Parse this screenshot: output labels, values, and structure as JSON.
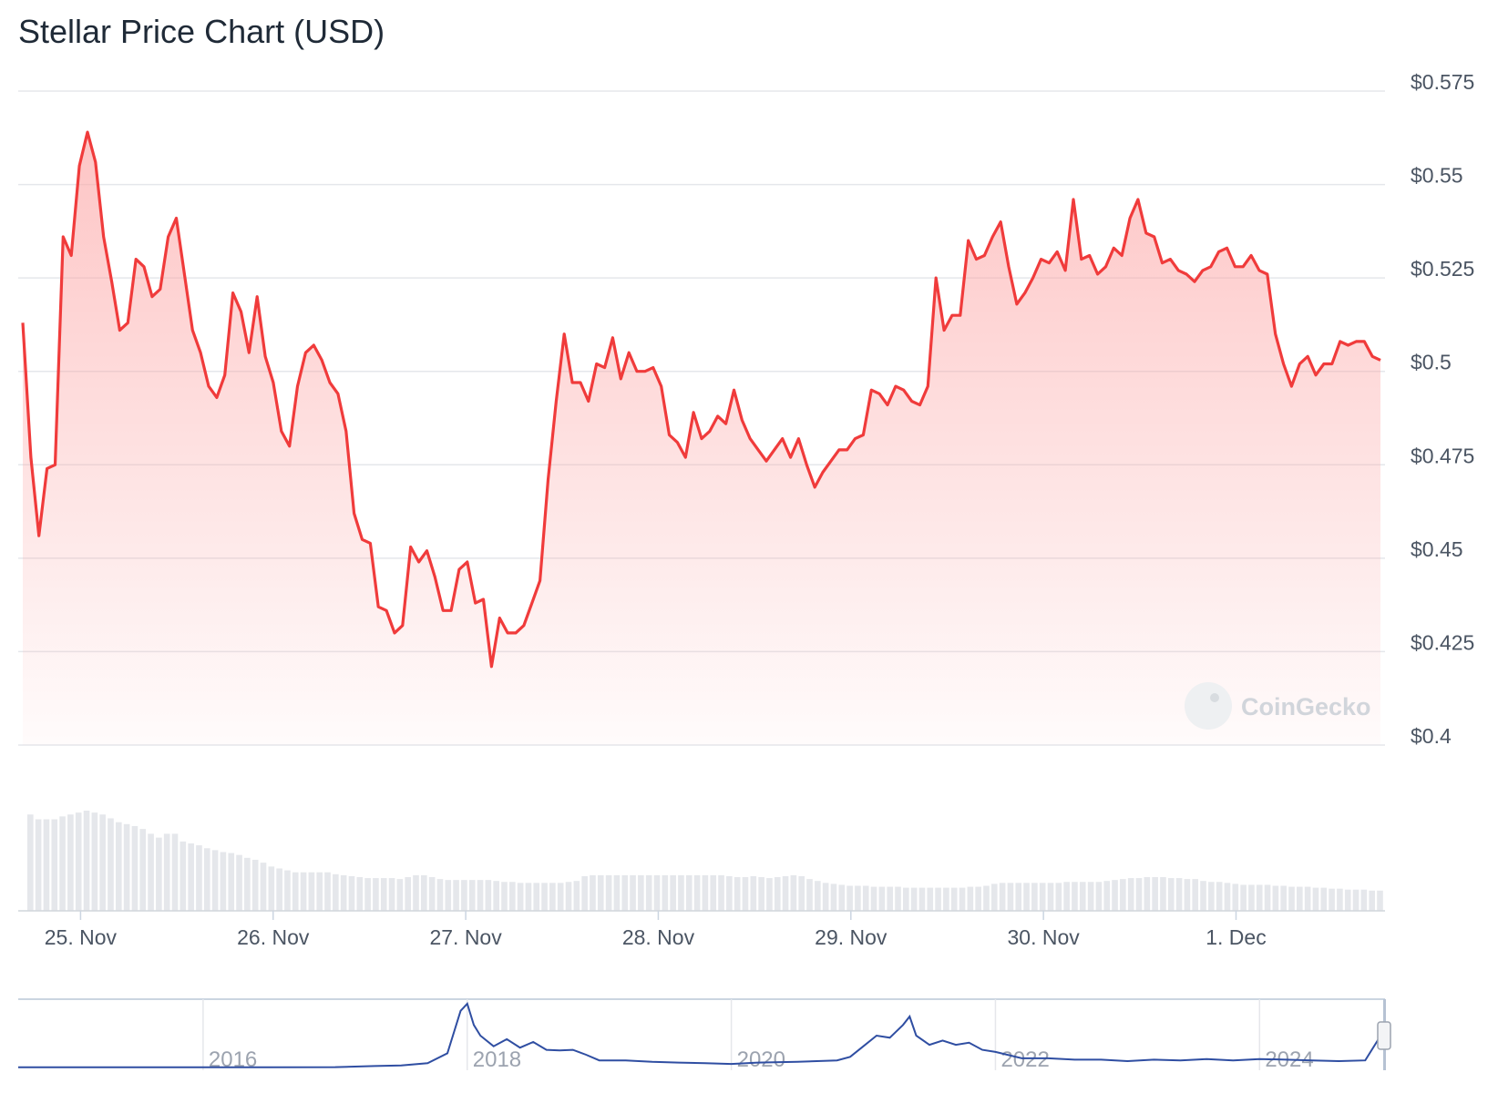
{
  "title": "Stellar Price Chart (USD)",
  "watermark": "CoinGecko",
  "colors": {
    "line": "#f03b3b",
    "fill": "#fca5a5",
    "volume": "#e5e7eb",
    "navigator": "#2f4ea2",
    "grid": "#e5e7eb"
  },
  "chart_data": [
    {
      "type": "line",
      "title": "Stellar Price Chart (USD)",
      "series": [
        {
          "values": [
            0.513,
            0.477,
            0.456,
            0.474,
            0.475,
            0.536,
            0.531,
            0.555,
            0.564,
            0.556,
            0.536,
            0.524,
            0.511,
            0.513,
            0.53,
            0.528,
            0.52,
            0.522,
            0.536,
            0.541,
            0.526,
            0.511,
            0.505,
            0.496,
            0.493,
            0.499,
            0.521,
            0.516,
            0.505,
            0.52,
            0.504,
            0.497,
            0.484,
            0.48,
            0.496,
            0.505,
            0.507,
            0.503,
            0.497,
            0.494,
            0.484,
            0.462,
            0.455,
            0.454,
            0.437,
            0.436,
            0.43,
            0.432,
            0.453,
            0.449,
            0.452,
            0.445,
            0.436,
            0.436,
            0.447,
            0.449,
            0.438,
            0.439,
            0.421,
            0.434,
            0.43,
            0.43,
            0.432,
            0.438,
            0.444,
            0.471,
            0.492,
            0.51,
            0.497,
            0.497,
            0.492,
            0.502,
            0.501,
            0.509,
            0.498,
            0.505,
            0.5,
            0.5,
            0.501,
            0.496,
            0.483,
            0.481,
            0.477,
            0.489,
            0.482,
            0.484,
            0.488,
            0.486,
            0.495,
            0.487,
            0.482,
            0.479,
            0.476,
            0.479,
            0.482,
            0.477,
            0.482,
            0.475,
            0.469,
            0.473,
            0.476,
            0.479,
            0.479,
            0.482,
            0.483,
            0.495,
            0.494,
            0.491,
            0.496,
            0.495,
            0.492,
            0.491,
            0.496,
            0.525,
            0.511,
            0.515,
            0.515,
            0.535,
            0.53,
            0.531,
            0.536,
            0.54,
            0.528,
            0.518,
            0.521,
            0.525,
            0.53,
            0.529,
            0.532,
            0.527,
            0.546,
            0.53,
            0.531,
            0.526,
            0.528,
            0.533,
            0.531,
            0.541,
            0.546,
            0.537,
            0.536,
            0.529,
            0.53,
            0.527,
            0.526,
            0.524,
            0.527,
            0.528,
            0.532,
            0.533,
            0.528,
            0.528,
            0.531,
            0.527,
            0.526,
            0.51,
            0.502,
            0.496,
            0.502,
            0.504,
            0.499,
            0.502,
            0.502,
            0.508,
            0.507,
            0.508,
            0.508,
            0.504,
            0.503
          ]
        }
      ],
      "x_tick_labels": [
        "25. Nov",
        "26. Nov",
        "27. Nov",
        "28. Nov",
        "29. Nov",
        "30. Nov",
        "1. Dec"
      ],
      "x_tick_positions": [
        0.5,
        1.5,
        2.5,
        3.5,
        4.5,
        5.5,
        6.5
      ],
      "x_range_days": [
        0.2,
        7.25
      ],
      "y_tick_labels": [
        "$0.4",
        "$0.425",
        "$0.45",
        "$0.475",
        "$0.5",
        "$0.525",
        "$0.55",
        "$0.575"
      ],
      "ylim": [
        0.4,
        0.575
      ],
      "grid": true
    },
    {
      "type": "bar",
      "title": "Volume",
      "values": [
        100,
        95,
        95,
        95,
        98,
        100,
        102,
        104,
        102,
        100,
        96,
        92,
        90,
        88,
        85,
        80,
        76,
        80,
        80,
        72,
        70,
        68,
        65,
        63,
        61,
        60,
        58,
        55,
        53,
        50,
        46,
        44,
        42,
        40,
        40,
        40,
        40,
        40,
        38,
        37,
        36,
        35,
        34,
        34,
        34,
        34,
        33,
        35,
        37,
        37,
        35,
        33,
        32,
        32,
        32,
        32,
        32,
        32,
        31,
        30,
        30,
        29,
        29,
        29,
        29,
        29,
        29,
        30,
        31,
        36,
        37,
        37,
        37,
        37,
        37,
        37,
        37,
        37,
        37,
        37,
        37,
        37,
        37,
        37,
        37,
        37,
        37,
        36,
        35,
        35,
        36,
        35,
        34,
        35,
        36,
        37,
        36,
        33,
        31,
        29,
        28,
        27,
        26,
        26,
        26,
        25,
        25,
        25,
        25,
        24,
        24,
        24,
        24,
        24,
        24,
        24,
        24,
        25,
        25,
        26,
        28,
        29,
        29,
        29,
        29,
        29,
        29,
        29,
        29,
        30,
        30,
        30,
        30,
        30,
        31,
        32,
        33,
        34,
        34,
        35,
        35,
        35,
        34,
        34,
        33,
        33,
        31,
        30,
        30,
        29,
        28,
        27,
        27,
        27,
        27,
        26,
        26,
        25,
        25,
        25,
        24,
        24,
        23,
        23,
        22,
        22,
        22,
        21,
        21
      ]
    },
    {
      "type": "line",
      "title": "Navigator",
      "x_tick_labels": [
        "2016",
        "2018",
        "2020",
        "2022",
        "2024"
      ],
      "x": [
        2014.6,
        2015.0,
        2015.5,
        2016.0,
        2016.5,
        2017.0,
        2017.3,
        2017.5,
        2017.7,
        2017.85,
        2017.95,
        2018.0,
        2018.05,
        2018.1,
        2018.2,
        2018.3,
        2018.4,
        2018.5,
        2018.6,
        2018.7,
        2018.8,
        2018.9,
        2019.0,
        2019.2,
        2019.4,
        2019.6,
        2019.8,
        2020.0,
        2020.2,
        2020.5,
        2020.8,
        2020.9,
        2021.0,
        2021.1,
        2021.2,
        2021.3,
        2021.35,
        2021.4,
        2021.5,
        2021.6,
        2021.7,
        2021.8,
        2021.9,
        2022.0,
        2022.2,
        2022.4,
        2022.6,
        2022.8,
        2023.0,
        2023.2,
        2023.4,
        2023.6,
        2023.8,
        2024.0,
        2024.2,
        2024.4,
        2024.6,
        2024.8,
        2024.9
      ],
      "values": [
        0.002,
        0.002,
        0.002,
        0.002,
        0.002,
        0.005,
        0.02,
        0.03,
        0.06,
        0.2,
        0.8,
        0.9,
        0.6,
        0.45,
        0.3,
        0.4,
        0.28,
        0.36,
        0.25,
        0.24,
        0.25,
        0.18,
        0.1,
        0.1,
        0.08,
        0.07,
        0.06,
        0.05,
        0.07,
        0.08,
        0.1,
        0.15,
        0.3,
        0.45,
        0.42,
        0.6,
        0.72,
        0.45,
        0.32,
        0.38,
        0.32,
        0.35,
        0.25,
        0.22,
        0.13,
        0.13,
        0.11,
        0.11,
        0.09,
        0.11,
        0.1,
        0.12,
        0.1,
        0.12,
        0.11,
        0.1,
        0.09,
        0.1,
        0.4
      ]
    }
  ]
}
